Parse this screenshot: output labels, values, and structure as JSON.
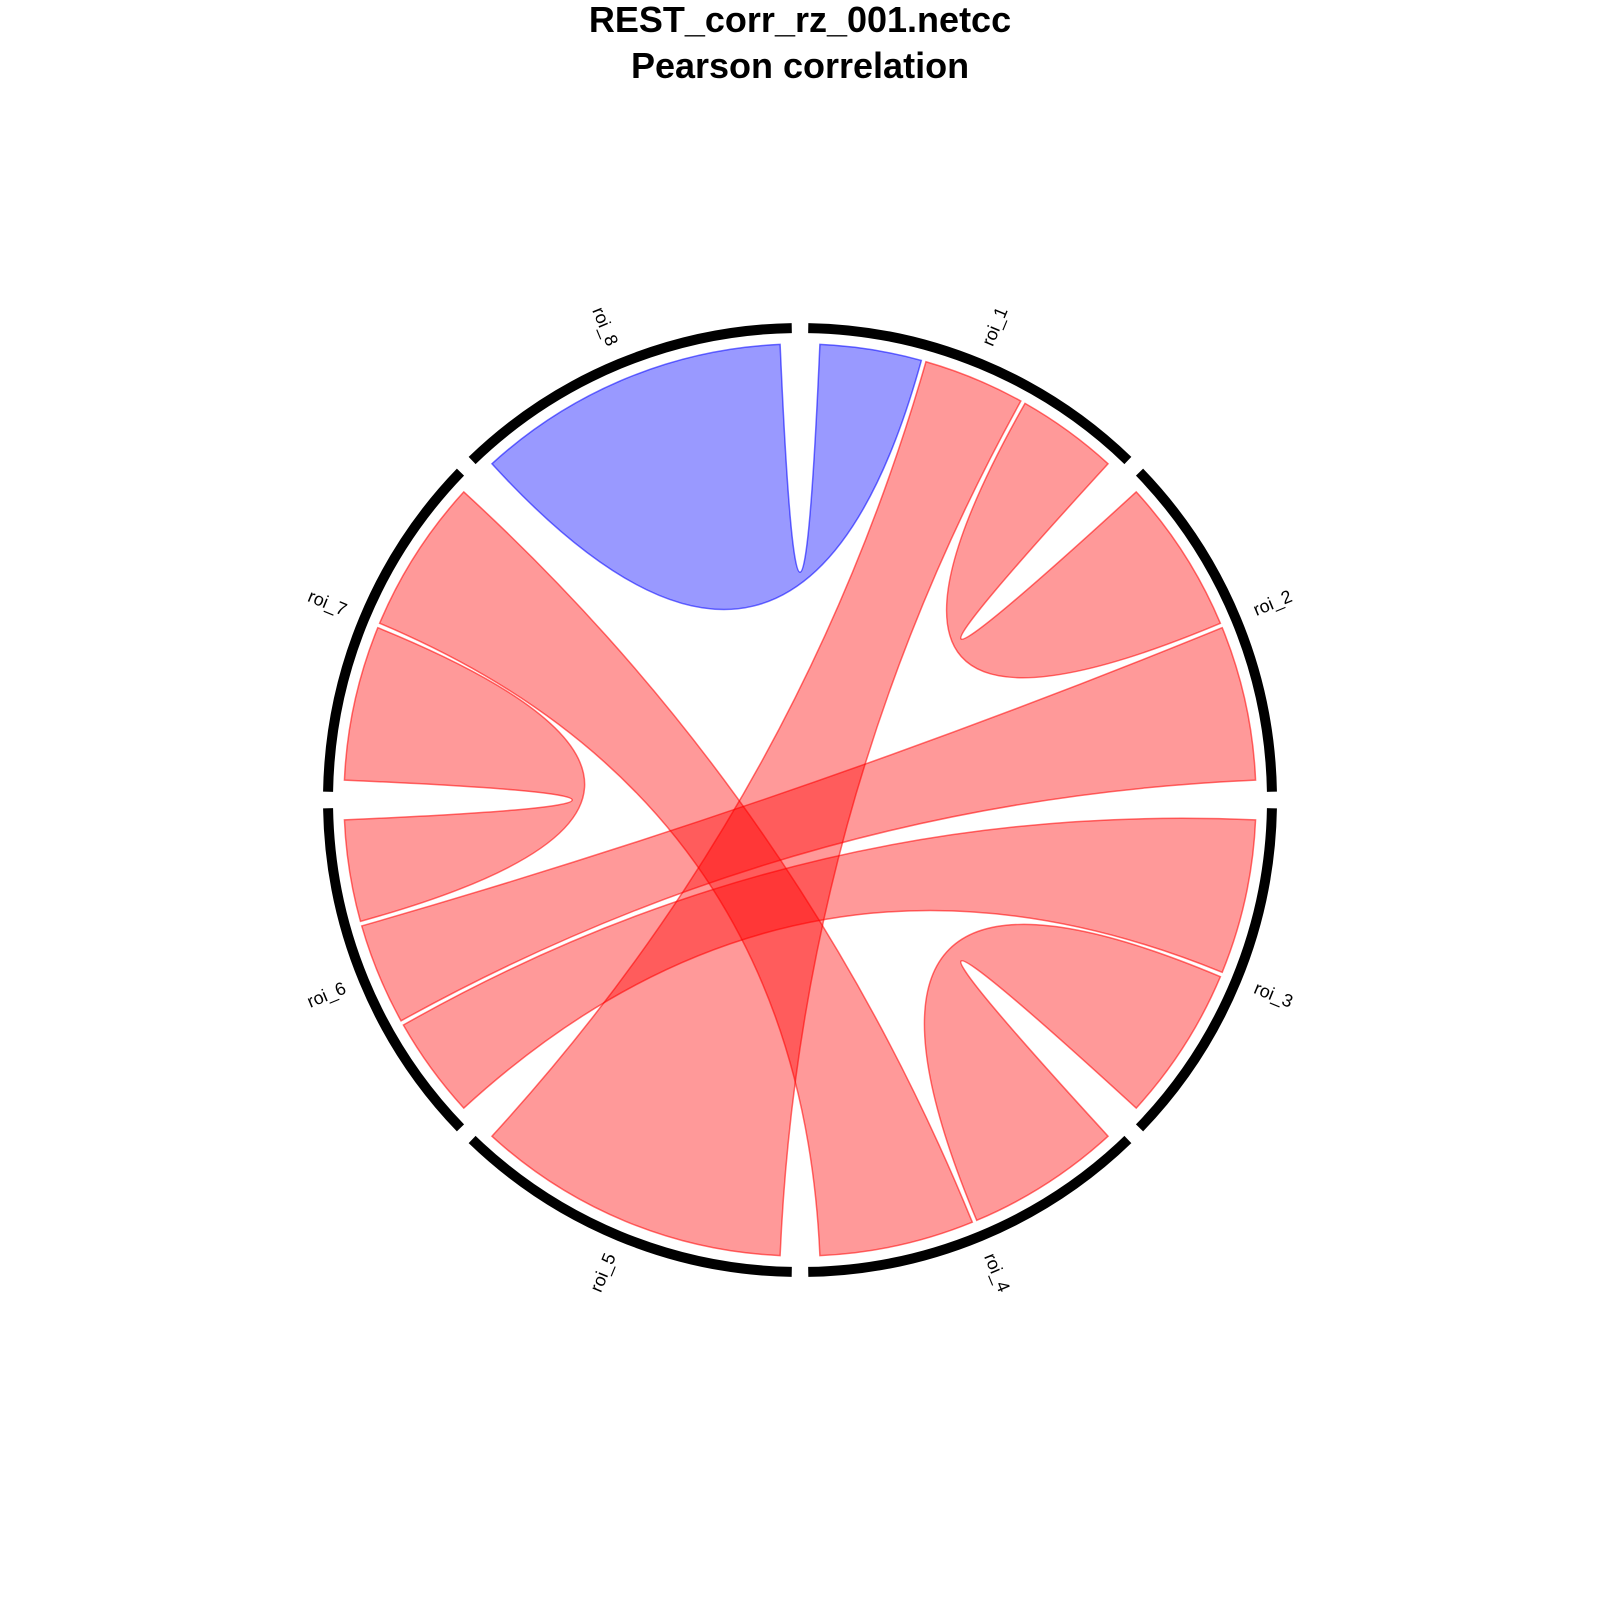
{
  "chart_data": {
    "type": "chord",
    "title": "REST_corr_rz_001.netcc",
    "subtitle": "Pearson correlation",
    "sectors": [
      "roi_1",
      "roi_2",
      "roi_3",
      "roi_4",
      "roi_5",
      "roi_6",
      "roi_7",
      "roi_8"
    ],
    "colors": {
      "positive": "#ff0000",
      "negative": "#0000ff",
      "ring": "#000000"
    },
    "links": [
      {
        "from": "roi_1",
        "to": "roi_5",
        "sign": "positive"
      },
      {
        "from": "roi_1",
        "to": "roi_8",
        "sign": "negative"
      },
      {
        "from": "roi_2",
        "to": "roi_1",
        "sign": "positive"
      },
      {
        "from": "roi_2",
        "to": "roi_6",
        "sign": "positive"
      },
      {
        "from": "roi_3",
        "to": "roi_6",
        "sign": "positive"
      },
      {
        "from": "roi_3",
        "to": "roi_4",
        "sign": "positive"
      },
      {
        "from": "roi_4",
        "to": "roi_7",
        "sign": "positive"
      },
      {
        "from": "roi_6",
        "to": "roi_7",
        "sign": "positive"
      }
    ]
  }
}
